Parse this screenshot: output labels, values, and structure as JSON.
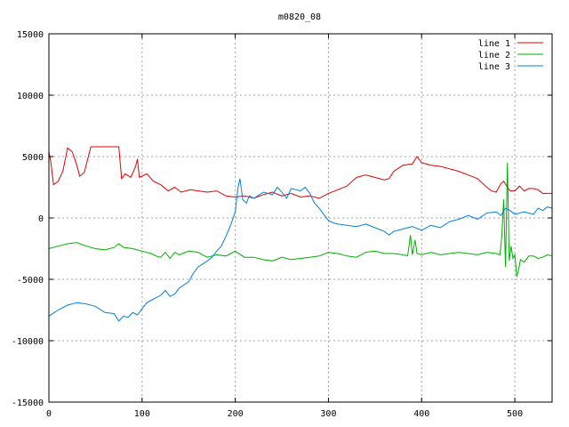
{
  "chart_data": {
    "type": "line",
    "title": "m0820_08",
    "xlabel": "",
    "ylabel": "",
    "xlim": [
      0,
      540
    ],
    "ylim": [
      -15000,
      15000
    ],
    "x_ticks": [
      0,
      100,
      200,
      300,
      400,
      500
    ],
    "y_ticks": [
      -15000,
      -10000,
      -5000,
      0,
      5000,
      10000,
      15000
    ],
    "grid": true,
    "legend_position": "top-right",
    "series": [
      {
        "name": "line 1",
        "color": "#e00000",
        "points": [
          [
            0,
            5400
          ],
          [
            2,
            4600
          ],
          [
            5,
            2700
          ],
          [
            10,
            3000
          ],
          [
            15,
            3800
          ],
          [
            20,
            5700
          ],
          [
            25,
            5400
          ],
          [
            30,
            4300
          ],
          [
            33,
            3400
          ],
          [
            38,
            3700
          ],
          [
            45,
            5800
          ],
          [
            55,
            5800
          ],
          [
            65,
            5800
          ],
          [
            75,
            5800
          ],
          [
            78,
            3200
          ],
          [
            82,
            3600
          ],
          [
            88,
            3300
          ],
          [
            93,
            4200
          ],
          [
            95,
            4800
          ],
          [
            97,
            3300
          ],
          [
            105,
            3600
          ],
          [
            112,
            3000
          ],
          [
            120,
            2700
          ],
          [
            128,
            2200
          ],
          [
            135,
            2500
          ],
          [
            142,
            2100
          ],
          [
            152,
            2300
          ],
          [
            160,
            2200
          ],
          [
            170,
            2100
          ],
          [
            180,
            2200
          ],
          [
            190,
            1800
          ],
          [
            200,
            1700
          ],
          [
            210,
            1800
          ],
          [
            220,
            1600
          ],
          [
            230,
            1900
          ],
          [
            240,
            2100
          ],
          [
            250,
            1800
          ],
          [
            260,
            2000
          ],
          [
            270,
            1700
          ],
          [
            280,
            1800
          ],
          [
            290,
            1600
          ],
          [
            300,
            2000
          ],
          [
            310,
            2300
          ],
          [
            320,
            2600
          ],
          [
            330,
            3300
          ],
          [
            340,
            3500
          ],
          [
            350,
            3300
          ],
          [
            360,
            3100
          ],
          [
            365,
            3200
          ],
          [
            370,
            3800
          ],
          [
            380,
            4300
          ],
          [
            390,
            4400
          ],
          [
            395,
            5000
          ],
          [
            400,
            4500
          ],
          [
            410,
            4300
          ],
          [
            420,
            4200
          ],
          [
            430,
            4000
          ],
          [
            440,
            3800
          ],
          [
            450,
            3500
          ],
          [
            460,
            3200
          ],
          [
            470,
            2500
          ],
          [
            475,
            2200
          ],
          [
            480,
            2100
          ],
          [
            485,
            2800
          ],
          [
            488,
            3000
          ],
          [
            492,
            2500
          ],
          [
            495,
            2200
          ],
          [
            500,
            2200
          ],
          [
            505,
            2600
          ],
          [
            510,
            2200
          ],
          [
            515,
            2400
          ],
          [
            520,
            2400
          ],
          [
            525,
            2300
          ],
          [
            530,
            2000
          ],
          [
            540,
            2000
          ]
        ]
      },
      {
        "name": "line 2",
        "color": "#00b000",
        "points": [
          [
            0,
            -2500
          ],
          [
            10,
            -2300
          ],
          [
            20,
            -2100
          ],
          [
            30,
            -2000
          ],
          [
            40,
            -2300
          ],
          [
            50,
            -2500
          ],
          [
            60,
            -2600
          ],
          [
            70,
            -2400
          ],
          [
            75,
            -2100
          ],
          [
            80,
            -2400
          ],
          [
            90,
            -2500
          ],
          [
            100,
            -2700
          ],
          [
            110,
            -2900
          ],
          [
            115,
            -3100
          ],
          [
            120,
            -3200
          ],
          [
            125,
            -2800
          ],
          [
            130,
            -3300
          ],
          [
            135,
            -2800
          ],
          [
            140,
            -3000
          ],
          [
            150,
            -2700
          ],
          [
            160,
            -2800
          ],
          [
            170,
            -3200
          ],
          [
            180,
            -3000
          ],
          [
            190,
            -3100
          ],
          [
            200,
            -2700
          ],
          [
            210,
            -3200
          ],
          [
            220,
            -3200
          ],
          [
            230,
            -3400
          ],
          [
            240,
            -3500
          ],
          [
            250,
            -3200
          ],
          [
            260,
            -3400
          ],
          [
            270,
            -3300
          ],
          [
            280,
            -3200
          ],
          [
            290,
            -3100
          ],
          [
            300,
            -2800
          ],
          [
            310,
            -2900
          ],
          [
            320,
            -3100
          ],
          [
            330,
            -3200
          ],
          [
            340,
            -2800
          ],
          [
            350,
            -2700
          ],
          [
            360,
            -2900
          ],
          [
            370,
            -2900
          ],
          [
            380,
            -3000
          ],
          [
            385,
            -3100
          ],
          [
            388,
            -1400
          ],
          [
            390,
            -3000
          ],
          [
            393,
            -1800
          ],
          [
            395,
            -2900
          ],
          [
            400,
            -3000
          ],
          [
            410,
            -2800
          ],
          [
            420,
            -3000
          ],
          [
            430,
            -2900
          ],
          [
            440,
            -2800
          ],
          [
            450,
            -2900
          ],
          [
            460,
            -3000
          ],
          [
            470,
            -2800
          ],
          [
            480,
            -2900
          ],
          [
            484,
            -3000
          ],
          [
            486,
            -1500
          ],
          [
            488,
            1500
          ],
          [
            490,
            -4000
          ],
          [
            492,
            4500
          ],
          [
            494,
            -3500
          ],
          [
            496,
            -2300
          ],
          [
            498,
            -3300
          ],
          [
            500,
            -3000
          ],
          [
            502,
            -4800
          ],
          [
            504,
            -4200
          ],
          [
            506,
            -3400
          ],
          [
            510,
            -3600
          ],
          [
            515,
            -3100
          ],
          [
            520,
            -3100
          ],
          [
            525,
            -3300
          ],
          [
            530,
            -3200
          ],
          [
            535,
            -3000
          ],
          [
            540,
            -3100
          ]
        ]
      },
      {
        "name": "line 3",
        "color": "#0080e0",
        "points": [
          [
            0,
            -8000
          ],
          [
            10,
            -7500
          ],
          [
            15,
            -7300
          ],
          [
            20,
            -7100
          ],
          [
            30,
            -6900
          ],
          [
            40,
            -7000
          ],
          [
            50,
            -7200
          ],
          [
            60,
            -7700
          ],
          [
            70,
            -7800
          ],
          [
            75,
            -8400
          ],
          [
            80,
            -8000
          ],
          [
            85,
            -8100
          ],
          [
            90,
            -7700
          ],
          [
            95,
            -7900
          ],
          [
            100,
            -7400
          ],
          [
            105,
            -6900
          ],
          [
            110,
            -6700
          ],
          [
            120,
            -6300
          ],
          [
            125,
            -5900
          ],
          [
            130,
            -6400
          ],
          [
            135,
            -6200
          ],
          [
            140,
            -5700
          ],
          [
            150,
            -5200
          ],
          [
            155,
            -4500
          ],
          [
            160,
            -4000
          ],
          [
            170,
            -3500
          ],
          [
            175,
            -3200
          ],
          [
            180,
            -2700
          ],
          [
            185,
            -2300
          ],
          [
            190,
            -1500
          ],
          [
            195,
            -600
          ],
          [
            200,
            500
          ],
          [
            203,
            2500
          ],
          [
            205,
            3200
          ],
          [
            208,
            1500
          ],
          [
            212,
            1200
          ],
          [
            215,
            1800
          ],
          [
            220,
            1600
          ],
          [
            230,
            2100
          ],
          [
            240,
            1900
          ],
          [
            245,
            2500
          ],
          [
            250,
            2100
          ],
          [
            255,
            1600
          ],
          [
            260,
            2400
          ],
          [
            270,
            2200
          ],
          [
            275,
            2500
          ],
          [
            280,
            2000
          ],
          [
            285,
            1200
          ],
          [
            290,
            800
          ],
          [
            295,
            300
          ],
          [
            300,
            -200
          ],
          [
            305,
            -400
          ],
          [
            310,
            -500
          ],
          [
            320,
            -600
          ],
          [
            330,
            -700
          ],
          [
            340,
            -500
          ],
          [
            350,
            -800
          ],
          [
            360,
            -1100
          ],
          [
            365,
            -1400
          ],
          [
            370,
            -1100
          ],
          [
            380,
            -900
          ],
          [
            390,
            -700
          ],
          [
            400,
            -1000
          ],
          [
            410,
            -600
          ],
          [
            420,
            -800
          ],
          [
            430,
            -300
          ],
          [
            440,
            -100
          ],
          [
            450,
            200
          ],
          [
            460,
            -100
          ],
          [
            470,
            400
          ],
          [
            480,
            500
          ],
          [
            485,
            200
          ],
          [
            490,
            800
          ],
          [
            495,
            600
          ],
          [
            500,
            300
          ],
          [
            505,
            400
          ],
          [
            510,
            500
          ],
          [
            520,
            300
          ],
          [
            525,
            800
          ],
          [
            530,
            600
          ],
          [
            535,
            900
          ],
          [
            540,
            800
          ]
        ]
      }
    ]
  }
}
